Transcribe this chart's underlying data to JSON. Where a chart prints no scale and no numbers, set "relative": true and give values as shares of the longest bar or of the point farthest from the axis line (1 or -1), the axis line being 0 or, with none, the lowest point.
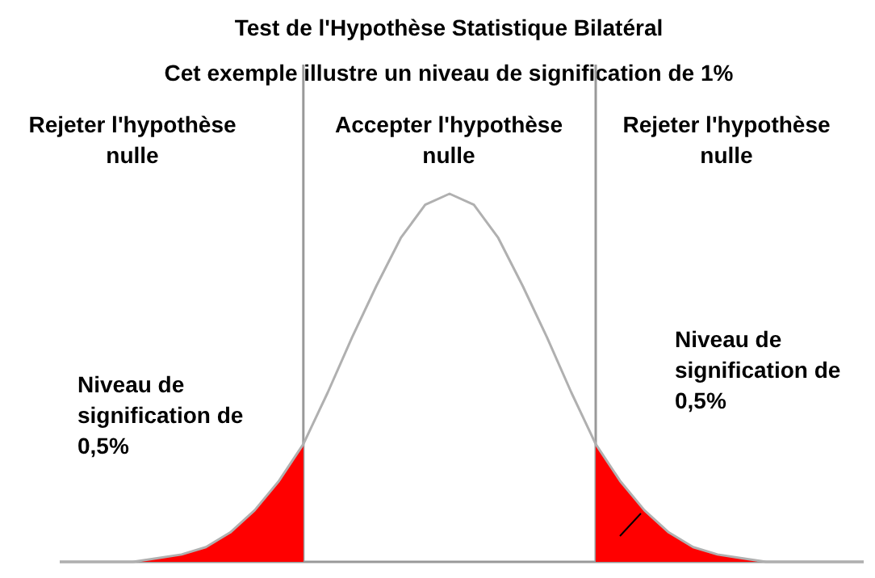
{
  "chart_data": {
    "type": "line",
    "title": "Test de l'Hypothèse Statistique Bilatéral",
    "subtitle": "Cet exemple illustre un niveau de signification de 1%",
    "relative": true,
    "categories": [
      null,
      null,
      null,
      null,
      null,
      null,
      null,
      null,
      null,
      null,
      null,
      null,
      null,
      null,
      null,
      null,
      null,
      null,
      null,
      null,
      null,
      null,
      null,
      null,
      null,
      null,
      null,
      null,
      null,
      null,
      null,
      null,
      null,
      null
    ],
    "series": [
      {
        "color": "#b0b0b0",
        "values": [
          0,
          0,
          0,
          0,
          0.01,
          0.02,
          0.04,
          0.08,
          0.14,
          0.22,
          0.32,
          0.46,
          0.61,
          0.75,
          0.88,
          0.97,
          1,
          0.97,
          0.88,
          0.75,
          0.61,
          0.46,
          0.32,
          0.22,
          0.14,
          0.08,
          0.04,
          0.02,
          0.01,
          0,
          0,
          0,
          0,
          0
        ]
      },
      {
        "type": "area",
        "color": "#ff0000",
        "values": [
          0,
          0,
          0,
          0,
          0.01,
          0.02,
          0.04,
          0.08,
          0.14,
          0.22,
          0.32,
          null,
          null,
          null,
          null,
          null,
          null,
          null,
          null,
          null,
          null,
          null,
          null,
          null,
          null,
          null,
          null,
          null,
          null,
          null,
          null,
          null,
          null,
          null
        ]
      },
      {
        "type": "area",
        "color": "#ff0000",
        "values": [
          null,
          null,
          null,
          null,
          null,
          null,
          null,
          null,
          null,
          null,
          null,
          null,
          null,
          null,
          null,
          null,
          null,
          null,
          null,
          null,
          null,
          null,
          0.32,
          0.22,
          0.14,
          0.08,
          0.04,
          0.02,
          0.01,
          0,
          0,
          0,
          0,
          0
        ]
      }
    ],
    "annotations": [
      "Rejeter l'hypothèse\nnulle",
      "Accepter l'hypothèse\nnulle",
      "Rejeter l'hypothèse\nnulle",
      "Niveau de\nsignification de\n0,5%",
      "Niveau de\nsignification de\n0,5%"
    ]
  }
}
